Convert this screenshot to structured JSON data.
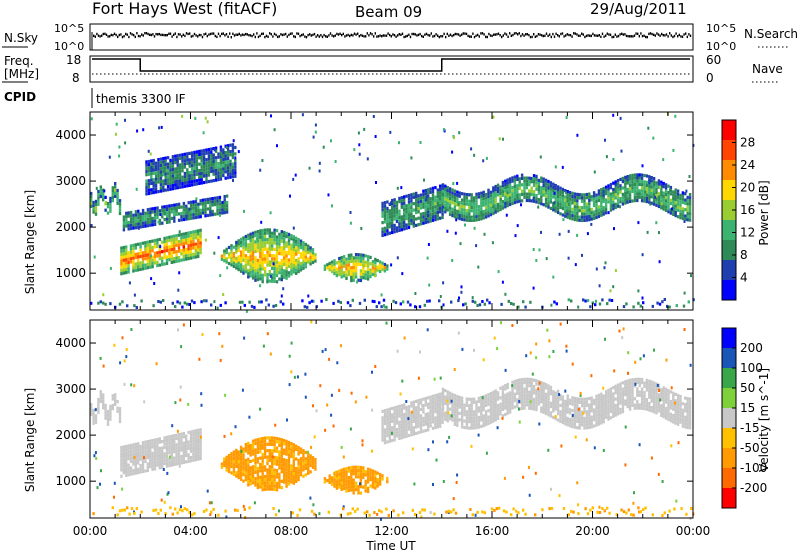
{
  "header": {
    "station": "Fort Hays West (fitACF)",
    "beam": "Beam 09",
    "date": "29/Aug/2011"
  },
  "noise_panel": {
    "left_label": "N.Sky",
    "right_label": "N.Search",
    "left_ticks": [
      "10^5",
      "10^0"
    ],
    "right_ticks": [
      "10^5",
      "10^0"
    ]
  },
  "freq_panel": {
    "left_label_1": "Freq.",
    "left_label_2": "[MHz]",
    "right_label": "Nave",
    "left_ticks": [
      "18",
      "8"
    ],
    "right_ticks": [
      "60",
      "0"
    ]
  },
  "cpid": {
    "label": "CPID",
    "program": "themis 3300 IF"
  },
  "colors": {
    "power_scale": [
      "#0000ff",
      "#1f3fb0",
      "#2e8b57",
      "#3cb371",
      "#9acd32",
      "#ffd700",
      "#ff8c00",
      "#ff4500",
      "#ff0000"
    ],
    "velocity_scale": [
      "#ff0000",
      "#ff6a00",
      "#ff9a00",
      "#ffc000",
      "#c8c8c8",
      "#7fd13b",
      "#3aa64a",
      "#1a55b8",
      "#0000ff"
    ]
  },
  "chart_data": [
    {
      "type": "heatmap",
      "name": "power",
      "ylabel": "Slant Range [km]",
      "xlabel": "",
      "xlim": [
        0,
        24
      ],
      "ylim": [
        200,
        4500
      ],
      "yticks": [
        "1000",
        "2000",
        "3000",
        "4000"
      ],
      "colorbar": {
        "label": "Power [dB]",
        "min": 0,
        "max": 32,
        "ticks": [
          "4",
          "8",
          "12",
          "16",
          "20",
          "24",
          "28"
        ]
      },
      "features": [
        {
          "kind": "wave",
          "x": [
            0.0,
            1.2
          ],
          "range": [
            2300,
            2900
          ],
          "value": 14
        },
        {
          "kind": "band",
          "x": [
            1.2,
            4.4
          ],
          "range": [
            900,
            1700
          ],
          "value": 26
        },
        {
          "kind": "band",
          "x": [
            1.3,
            5.5
          ],
          "range": [
            1900,
            2400
          ],
          "value": 12
        },
        {
          "kind": "band",
          "x": [
            2.2,
            5.8
          ],
          "range": [
            2600,
            3600
          ],
          "value": 10
        },
        {
          "kind": "blob",
          "x": [
            5.2,
            9.0
          ],
          "range": [
            900,
            1900
          ],
          "value": 22
        },
        {
          "kind": "blob",
          "x": [
            9.3,
            11.8
          ],
          "range": [
            900,
            1400
          ],
          "value": 22
        },
        {
          "kind": "band",
          "x": [
            11.6,
            14.0
          ],
          "range": [
            1700,
            2700
          ],
          "value": 12
        },
        {
          "kind": "wave",
          "x": [
            14.0,
            23.9
          ],
          "range": [
            2100,
            3200
          ],
          "value": 14
        }
      ]
    },
    {
      "type": "heatmap",
      "name": "velocity",
      "ylabel": "Slant Range [km]",
      "xlabel": "Time UT",
      "xlim": [
        0,
        24
      ],
      "ylim": [
        200,
        4500
      ],
      "xticks": [
        "00:00",
        "04:00",
        "08:00",
        "12:00",
        "16:00",
        "20:00",
        "00:00"
      ],
      "yticks": [
        "1000",
        "2000",
        "3000",
        "4000"
      ],
      "colorbar": {
        "label": "Velocity [m s^-1]",
        "ticks": [
          "200",
          "100",
          "50",
          "15",
          "-15",
          "-50",
          "-100",
          "-200"
        ]
      },
      "features": [
        {
          "kind": "wave",
          "x": [
            0.0,
            1.2
          ],
          "range": [
            2300,
            2900
          ],
          "value": 0
        },
        {
          "kind": "band",
          "x": [
            1.2,
            4.4
          ],
          "range": [
            1000,
            1900
          ],
          "value": 0
        },
        {
          "kind": "blob",
          "x": [
            5.2,
            9.0
          ],
          "range": [
            900,
            1900
          ],
          "value": -60
        },
        {
          "kind": "blob",
          "x": [
            9.3,
            11.8
          ],
          "range": [
            800,
            1300
          ],
          "value": -60
        },
        {
          "kind": "band",
          "x": [
            11.6,
            14.0
          ],
          "range": [
            1700,
            2700
          ],
          "value": 0
        },
        {
          "kind": "wave",
          "x": [
            14.0,
            23.9
          ],
          "range": [
            2100,
            3300
          ],
          "value": 0
        }
      ]
    }
  ]
}
